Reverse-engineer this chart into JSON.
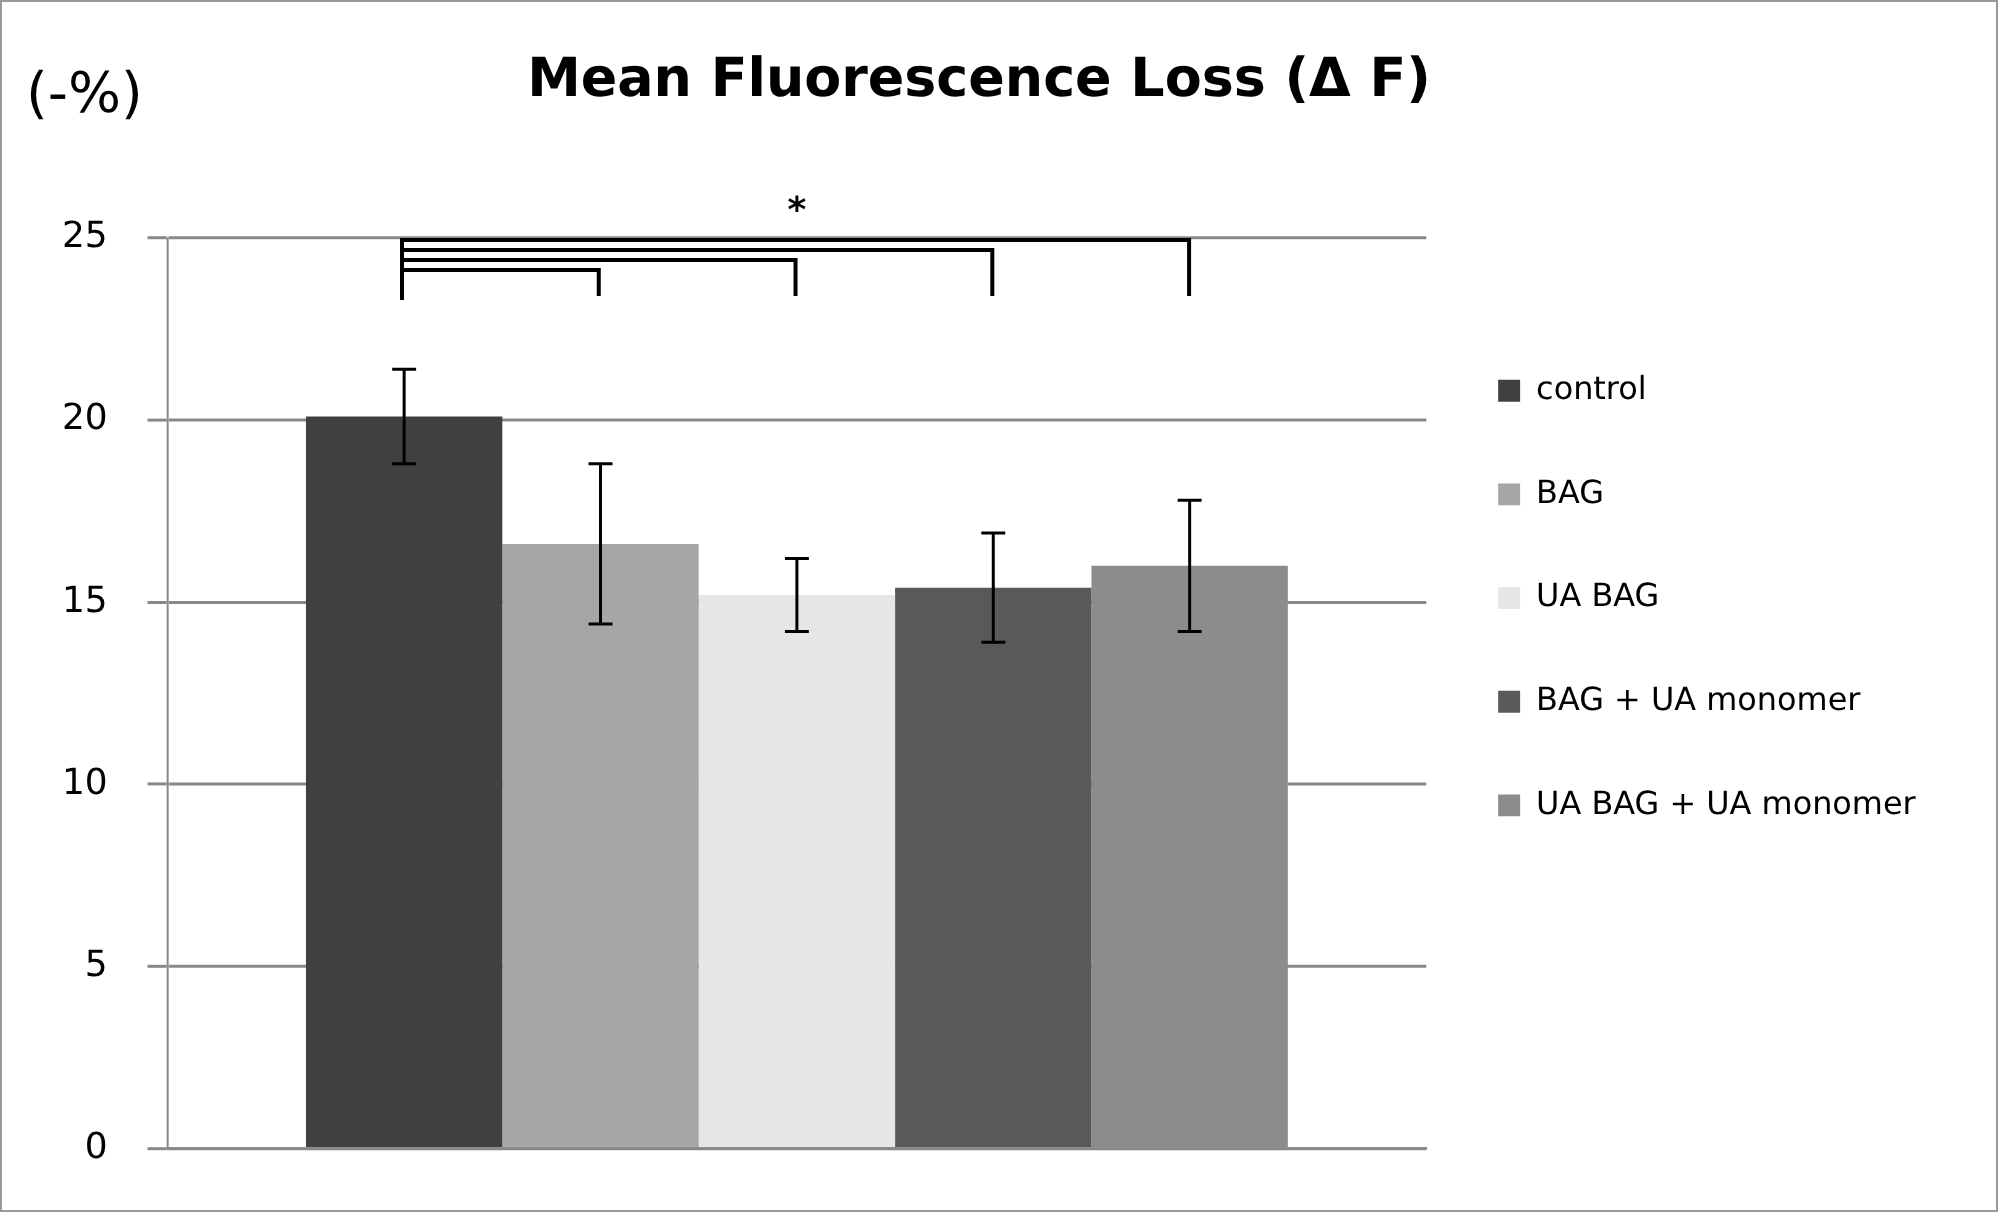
{
  "chart_data": {
    "type": "bar",
    "title": "Mean Fluorescence Loss (Δ F)",
    "ylabel": "(-%)",
    "categories": [
      null
    ],
    "series": [
      {
        "name": "control",
        "color": "#404040",
        "values": [
          20.1
        ],
        "errors": [
          1.3
        ]
      },
      {
        "name": "BAG",
        "color": "#a6a6a6",
        "values": [
          16.6
        ],
        "errors": [
          2.2
        ]
      },
      {
        "name": "UA BAG",
        "color": "#e6e6e6",
        "values": [
          15.2
        ],
        "errors": [
          1.0
        ]
      },
      {
        "name": "BAG + UA monomer",
        "color": "#595959",
        "values": [
          15.4
        ],
        "errors": [
          1.5
        ]
      },
      {
        "name": "UA BAG + UA monomer",
        "color": "#8c8c8c",
        "values": [
          16.0
        ],
        "errors": [
          1.8
        ]
      }
    ],
    "ylim": [
      0,
      25
    ],
    "yticks": [
      0,
      5,
      10,
      15,
      20,
      25
    ],
    "grid": "y",
    "legend": "right",
    "annotations": [
      "*"
    ]
  }
}
